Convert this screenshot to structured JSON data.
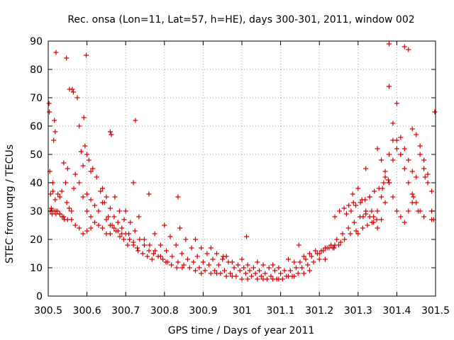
{
  "chart_data": {
    "type": "scatter",
    "title": "Rec. onsa (Lon=11, Lat=57, h=HE), days 300-301, 2011, window 002",
    "xlabel": "GPS time / Days of year 2011",
    "ylabel": "STEC from uqrg / TECUs",
    "xlim": [
      300.5,
      301.5
    ],
    "ylim": [
      0,
      90
    ],
    "grid": true,
    "marker": "plus",
    "color": "#dd0000",
    "xticks": [
      {
        "value": 300.5,
        "label": "300.5"
      },
      {
        "value": 300.6,
        "label": "300.6"
      },
      {
        "value": 300.7,
        "label": "300.7"
      },
      {
        "value": 300.8,
        "label": "300.8"
      },
      {
        "value": 300.9,
        "label": "300.9"
      },
      {
        "value": 301.0,
        "label": "301"
      },
      {
        "value": 301.1,
        "label": "301.1"
      },
      {
        "value": 301.2,
        "label": "301.2"
      },
      {
        "value": 301.3,
        "label": "301.3"
      },
      {
        "value": 301.4,
        "label": "301.4"
      },
      {
        "value": 301.5,
        "label": "301.5"
      }
    ],
    "yticks": [
      {
        "value": 0,
        "label": "0"
      },
      {
        "value": 10,
        "label": "10"
      },
      {
        "value": 20,
        "label": "20"
      },
      {
        "value": 30,
        "label": "30"
      },
      {
        "value": 40,
        "label": "40"
      },
      {
        "value": 50,
        "label": "50"
      },
      {
        "value": 60,
        "label": "60"
      },
      {
        "value": 70,
        "label": "70"
      },
      {
        "value": 80,
        "label": "80"
      },
      {
        "value": 90,
        "label": "90"
      }
    ],
    "series": [
      {
        "x": [
          300.502,
          300.503,
          300.504,
          300.506,
          300.508,
          300.51,
          300.512,
          300.514,
          300.516,
          300.518,
          300.505,
          300.51,
          300.515,
          300.52,
          300.525,
          300.53,
          300.535,
          300.54,
          300.545,
          300.55,
          300.512,
          300.518,
          300.524,
          300.53,
          300.536,
          300.542,
          300.548,
          300.554,
          300.56,
          300.566,
          300.52,
          300.53,
          300.54,
          300.55,
          300.56,
          300.57,
          300.58,
          300.59,
          300.6,
          300.61,
          300.555,
          300.565,
          300.575,
          300.58,
          300.585,
          300.59,
          300.595,
          300.6,
          300.605,
          300.61,
          300.57,
          300.58,
          300.59,
          300.6,
          300.61,
          300.62,
          300.63,
          300.64,
          300.65,
          300.66,
          300.6,
          300.61,
          300.62,
          300.63,
          300.64,
          300.65,
          300.66,
          300.67,
          300.68,
          300.69,
          300.615,
          300.625,
          300.635,
          300.645,
          300.655,
          300.665,
          300.675,
          300.685,
          300.695,
          300.705,
          300.64,
          300.65,
          300.66,
          300.67,
          300.68,
          300.69,
          300.7,
          300.71,
          300.72,
          300.73,
          300.66,
          300.672,
          300.684,
          300.696,
          300.708,
          300.72,
          300.732,
          300.744,
          300.756,
          300.768,
          300.7,
          300.712,
          300.724,
          300.736,
          300.748,
          300.76,
          300.772,
          300.784,
          300.796,
          300.808,
          300.72,
          300.734,
          300.748,
          300.762,
          300.776,
          300.79,
          300.804,
          300.818,
          300.832,
          300.846,
          300.76,
          300.775,
          300.79,
          300.805,
          300.82,
          300.835,
          300.85,
          300.865,
          300.88,
          300.895,
          300.8,
          300.815,
          300.83,
          300.845,
          300.86,
          300.875,
          300.89,
          300.905,
          300.92,
          300.935,
          300.84,
          300.855,
          300.87,
          300.885,
          300.9,
          300.915,
          300.93,
          300.945,
          300.96,
          300.975,
          300.88,
          300.895,
          300.91,
          300.925,
          300.94,
          300.955,
          300.97,
          300.985,
          301.0,
          301.015,
          300.92,
          300.935,
          300.95,
          300.965,
          300.98,
          300.995,
          301.01,
          301.025,
          301.04,
          301.055,
          300.96,
          300.975,
          300.99,
          301.005,
          301.02,
          301.035,
          301.05,
          301.065,
          301.08,
          301.095,
          301.0,
          301.015,
          301.03,
          301.045,
          301.06,
          301.075,
          301.09,
          301.105,
          301.12,
          301.135,
          301.04,
          301.055,
          301.07,
          301.085,
          301.1,
          301.115,
          301.13,
          301.145,
          301.16,
          301.175,
          301.08,
          301.095,
          301.11,
          301.125,
          301.14,
          301.155,
          301.17,
          301.185,
          301.2,
          301.215,
          301.12,
          301.135,
          301.15,
          301.165,
          301.18,
          301.195,
          301.21,
          301.225,
          301.24,
          301.255,
          301.16,
          301.175,
          301.19,
          301.205,
          301.22,
          301.235,
          301.25,
          301.265,
          301.28,
          301.295,
          301.2,
          301.215,
          301.23,
          301.245,
          301.26,
          301.275,
          301.29,
          301.305,
          301.32,
          301.335,
          301.24,
          301.252,
          301.264,
          301.276,
          301.288,
          301.3,
          301.312,
          301.324,
          301.336,
          301.348,
          301.27,
          301.282,
          301.294,
          301.306,
          301.318,
          301.33,
          301.342,
          301.354,
          301.366,
          301.378,
          301.3,
          301.31,
          301.32,
          301.33,
          301.34,
          301.35,
          301.36,
          301.37,
          301.38,
          301.39,
          301.32,
          301.33,
          301.34,
          301.35,
          301.36,
          301.37,
          301.38,
          301.39,
          301.4,
          301.41,
          301.35,
          301.36,
          301.37,
          301.38,
          301.39,
          301.4,
          301.41,
          301.42,
          301.43,
          301.44,
          301.38,
          301.39,
          301.4,
          301.41,
          301.42,
          301.43,
          301.44,
          301.45,
          301.46,
          301.47,
          301.4,
          301.41,
          301.42,
          301.43,
          301.44,
          301.45,
          301.46,
          301.47,
          301.48,
          301.49,
          301.42,
          301.43,
          301.44,
          301.45,
          301.46,
          301.47,
          301.48,
          301.49,
          301.495,
          301.498,
          300.52,
          300.547,
          300.598,
          300.663,
          300.725,
          300.835,
          300.952,
          301.012,
          301.147,
          301.238,
          301.286,
          301.313,
          301.363,
          301.38,
          301.443,
          301.455,
          301.473,
          301.49,
          300.562,
          300.592
        ],
        "y": [
          68,
          65,
          44,
          36,
          31,
          30,
          40,
          55,
          62,
          58,
          30,
          29,
          30,
          29,
          36,
          35,
          37,
          47,
          40,
          45,
          37,
          34,
          30,
          29,
          28,
          27,
          33,
          31,
          30,
          38,
          30,
          29,
          28,
          27,
          27,
          25,
          24,
          22,
          23,
          24,
          73,
          72,
          70,
          60,
          51,
          46,
          53,
          50,
          48,
          44,
          43,
          40,
          35,
          30,
          28,
          26,
          25,
          24,
          22,
          22,
          36,
          34,
          32,
          30,
          33,
          27,
          25,
          24,
          23,
          22,
          45,
          42,
          37,
          33,
          28,
          25,
          23,
          21,
          20,
          18,
          38,
          35,
          31,
          28,
          26,
          24,
          22,
          20,
          19,
          17,
          58,
          35,
          30,
          27,
          22,
          18,
          16,
          15,
          14,
          13,
          30,
          26,
          23,
          20,
          18,
          16,
          15,
          14,
          13,
          12,
          40,
          28,
          20,
          18,
          16,
          14,
          12,
          11,
          10,
          10,
          36,
          22,
          18,
          16,
          14,
          12,
          11,
          10,
          9,
          8,
          25,
          21,
          18,
          15,
          13,
          12,
          10,
          9,
          8,
          8,
          24,
          20,
          17,
          14,
          12,
          11,
          9,
          8,
          7,
          7,
          20,
          17,
          15,
          13,
          11,
          9,
          8,
          7,
          6,
          6,
          17,
          15,
          13,
          12,
          10,
          9,
          8,
          7,
          6,
          6,
          14,
          12,
          11,
          10,
          9,
          8,
          7,
          6,
          6,
          6,
          13,
          11,
          10,
          9,
          8,
          7,
          6,
          6,
          7,
          7,
          12,
          11,
          10,
          9,
          8,
          7,
          7,
          8,
          8,
          9,
          11,
          10,
          9,
          9,
          10,
          10,
          11,
          12,
          13,
          13,
          13,
          12,
          12,
          13,
          14,
          15,
          16,
          17,
          18,
          19,
          14,
          15,
          16,
          16,
          17,
          17,
          18,
          20,
          22,
          23,
          15,
          17,
          18,
          20,
          22,
          24,
          26,
          28,
          29,
          30,
          28,
          30,
          31,
          32,
          33,
          22,
          24,
          25,
          26,
          27,
          29,
          30,
          32,
          33,
          34,
          35,
          37,
          38,
          40,
          41,
          38,
          34,
          30,
          28,
          26,
          30,
          35,
          42,
          50,
          55,
          45,
          35,
          28,
          24,
          27,
          33,
          40,
          48,
          52,
          50,
          52,
          48,
          44,
          40,
          35,
          30,
          28,
          26,
          30,
          33,
          74,
          61,
          55,
          50,
          45,
          40,
          36,
          33,
          30,
          28,
          68,
          56,
          52,
          48,
          44,
          42,
          50,
          45,
          40,
          37,
          88,
          87,
          59,
          57,
          53,
          48,
          43,
          30,
          27,
          65,
          86,
          84,
          85,
          57,
          62,
          35,
          14,
          21,
          18,
          17,
          36,
          28,
          38,
          89,
          35,
          30,
          42,
          27,
          73,
          63
        ]
      }
    ]
  }
}
